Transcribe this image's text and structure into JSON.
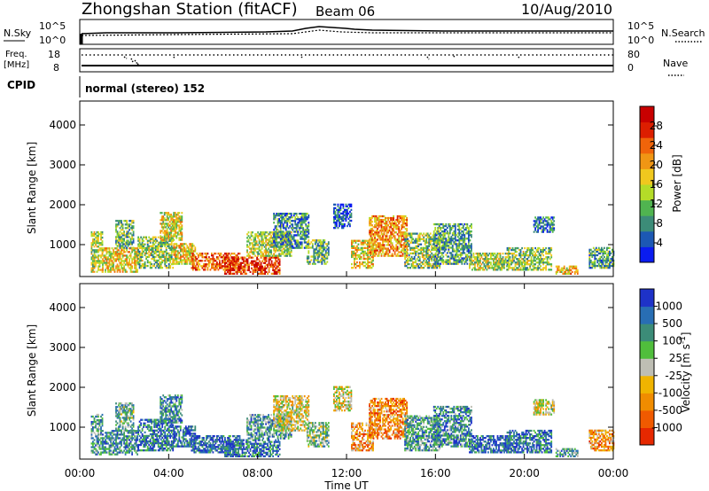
{
  "header": {
    "station_title": "Zhongshan Station (fitACF)",
    "beam_label": "Beam 06",
    "date_label": "10/Aug/2010"
  },
  "noise_panel": {
    "left_label": "N.Sky",
    "right_label": "N.Search",
    "left_ticks": [
      "10^5",
      "10^0"
    ],
    "right_ticks": [
      "10^5",
      "10^0"
    ]
  },
  "freq_panel": {
    "left_label_line1": "Freq.",
    "left_label_line2": "[MHz]",
    "right_label": "Nave",
    "left_ticks": [
      "18",
      "8"
    ],
    "right_ticks": [
      "80",
      "0"
    ]
  },
  "cpid_panel": {
    "label": "CPID",
    "mode_text": "normal (stereo) 152"
  },
  "chart_data": [
    {
      "type": "heatmap",
      "name": "power",
      "ylabel": "Slant Range [km]",
      "y_ticks": [
        "1000",
        "2000",
        "3000",
        "4000"
      ],
      "ylim": [
        200,
        4600
      ],
      "xlim": [
        0,
        24
      ],
      "colorbar": {
        "label": "Power [dB]",
        "ticks": [
          "4",
          "8",
          "12",
          "16",
          "20",
          "24",
          "28"
        ],
        "colors": [
          "#0a1cf0",
          "#1c58b4",
          "#3c8c78",
          "#50b450",
          "#b4dc28",
          "#f0c81e",
          "#f09614",
          "#f0640a",
          "#dc1e00",
          "#c80000"
        ]
      },
      "echo_regions": [
        {
          "t": [
            0.5,
            1.0
          ],
          "range": [
            300,
            1300
          ],
          "level": 0.45
        },
        {
          "t": [
            1.0,
            2.6
          ],
          "range": [
            300,
            900
          ],
          "level": 0.55
        },
        {
          "t": [
            1.6,
            2.4
          ],
          "range": [
            900,
            1600
          ],
          "level": 0.35
        },
        {
          "t": [
            2.6,
            4.2
          ],
          "range": [
            400,
            1200
          ],
          "level": 0.4
        },
        {
          "t": [
            3.6,
            4.6
          ],
          "range": [
            1100,
            1800
          ],
          "level": 0.5
        },
        {
          "t": [
            4.2,
            5.2
          ],
          "range": [
            500,
            1000
          ],
          "level": 0.55
        },
        {
          "t": [
            5.0,
            7.2
          ],
          "range": [
            350,
            800
          ],
          "level": 0.75
        },
        {
          "t": [
            6.5,
            9.0
          ],
          "range": [
            250,
            700
          ],
          "level": 0.85
        },
        {
          "t": [
            7.5,
            9.5
          ],
          "range": [
            700,
            1300
          ],
          "level": 0.45
        },
        {
          "t": [
            8.7,
            10.3
          ],
          "range": [
            900,
            1800
          ],
          "level": 0.25
        },
        {
          "t": [
            10.2,
            11.2
          ],
          "range": [
            500,
            1100
          ],
          "level": 0.35
        },
        {
          "t": [
            11.4,
            12.2
          ],
          "range": [
            1400,
            2000
          ],
          "level": 0.15
        },
        {
          "t": [
            12.2,
            13.2
          ],
          "range": [
            400,
            1100
          ],
          "level": 0.55
        },
        {
          "t": [
            13.0,
            14.7
          ],
          "range": [
            700,
            1700
          ],
          "level": 0.65
        },
        {
          "t": [
            14.6,
            16.2
          ],
          "range": [
            400,
            1300
          ],
          "level": 0.4
        },
        {
          "t": [
            15.9,
            17.6
          ],
          "range": [
            500,
            1500
          ],
          "level": 0.3
        },
        {
          "t": [
            17.5,
            19.3
          ],
          "range": [
            350,
            800
          ],
          "level": 0.45
        },
        {
          "t": [
            19.2,
            21.2
          ],
          "range": [
            350,
            900
          ],
          "level": 0.4
        },
        {
          "t": [
            20.4,
            21.3
          ],
          "range": [
            1300,
            1700
          ],
          "level": 0.2
        },
        {
          "t": [
            21.4,
            22.4
          ],
          "range": [
            250,
            450
          ],
          "level": 0.6
        },
        {
          "t": [
            22.9,
            24.0
          ],
          "range": [
            400,
            900
          ],
          "level": 0.3
        }
      ]
    },
    {
      "type": "heatmap",
      "name": "velocity",
      "ylabel": "Slant Range [km]",
      "y_ticks": [
        "1000",
        "2000",
        "3000",
        "4000"
      ],
      "ylim": [
        200,
        4600
      ],
      "xlim": [
        0,
        24
      ],
      "colorbar": {
        "label": "Velocity [m s^-1]",
        "ticks": [
          "1000",
          "500",
          "100",
          "25",
          "-25",
          "-100",
          "-500",
          "-1000"
        ],
        "colors": [
          "#1e32c8",
          "#286eb4",
          "#3c8c78",
          "#50be3c",
          "#bebeb4",
          "#f0b400",
          "#f08c00",
          "#f05a00",
          "#e62800"
        ]
      },
      "echo_regions": [
        {
          "t": [
            0.5,
            1.0
          ],
          "range": [
            300,
            1300
          ],
          "level": 0.3
        },
        {
          "t": [
            1.0,
            2.6
          ],
          "range": [
            300,
            900
          ],
          "level": 0.25
        },
        {
          "t": [
            1.6,
            2.4
          ],
          "range": [
            900,
            1600
          ],
          "level": 0.35
        },
        {
          "t": [
            2.6,
            4.2
          ],
          "range": [
            400,
            1200
          ],
          "level": 0.2
        },
        {
          "t": [
            3.6,
            4.6
          ],
          "range": [
            1100,
            1800
          ],
          "level": 0.25
        },
        {
          "t": [
            4.2,
            5.2
          ],
          "range": [
            500,
            1000
          ],
          "level": 0.15
        },
        {
          "t": [
            5.0,
            7.2
          ],
          "range": [
            350,
            800
          ],
          "level": 0.15
        },
        {
          "t": [
            6.5,
            9.0
          ],
          "range": [
            250,
            700
          ],
          "level": 0.2
        },
        {
          "t": [
            7.5,
            9.5
          ],
          "range": [
            700,
            1300
          ],
          "level": 0.3
        },
        {
          "t": [
            8.7,
            10.3
          ],
          "range": [
            900,
            1800
          ],
          "level": 0.55
        },
        {
          "t": [
            10.2,
            11.2
          ],
          "range": [
            500,
            1100
          ],
          "level": 0.4
        },
        {
          "t": [
            11.4,
            12.2
          ],
          "range": [
            1400,
            2000
          ],
          "level": 0.55
        },
        {
          "t": [
            12.2,
            13.2
          ],
          "range": [
            400,
            1100
          ],
          "level": 0.7
        },
        {
          "t": [
            13.0,
            14.7
          ],
          "range": [
            700,
            1700
          ],
          "level": 0.75
        },
        {
          "t": [
            14.6,
            16.2
          ],
          "range": [
            400,
            1300
          ],
          "level": 0.3
        },
        {
          "t": [
            15.9,
            17.6
          ],
          "range": [
            500,
            1500
          ],
          "level": 0.25
        },
        {
          "t": [
            17.5,
            19.3
          ],
          "range": [
            350,
            800
          ],
          "level": 0.15
        },
        {
          "t": [
            19.2,
            21.2
          ],
          "range": [
            350,
            900
          ],
          "level": 0.2
        },
        {
          "t": [
            20.4,
            21.3
          ],
          "range": [
            1300,
            1700
          ],
          "level": 0.55
        },
        {
          "t": [
            21.4,
            22.4
          ],
          "range": [
            250,
            450
          ],
          "level": 0.3
        },
        {
          "t": [
            22.9,
            24.0
          ],
          "range": [
            400,
            900
          ],
          "level": 0.7
        }
      ]
    }
  ],
  "time_axis": {
    "label": "Time UT",
    "ticks": [
      "00:00",
      "04:00",
      "08:00",
      "12:00",
      "16:00",
      "20:00",
      "00:00"
    ]
  }
}
